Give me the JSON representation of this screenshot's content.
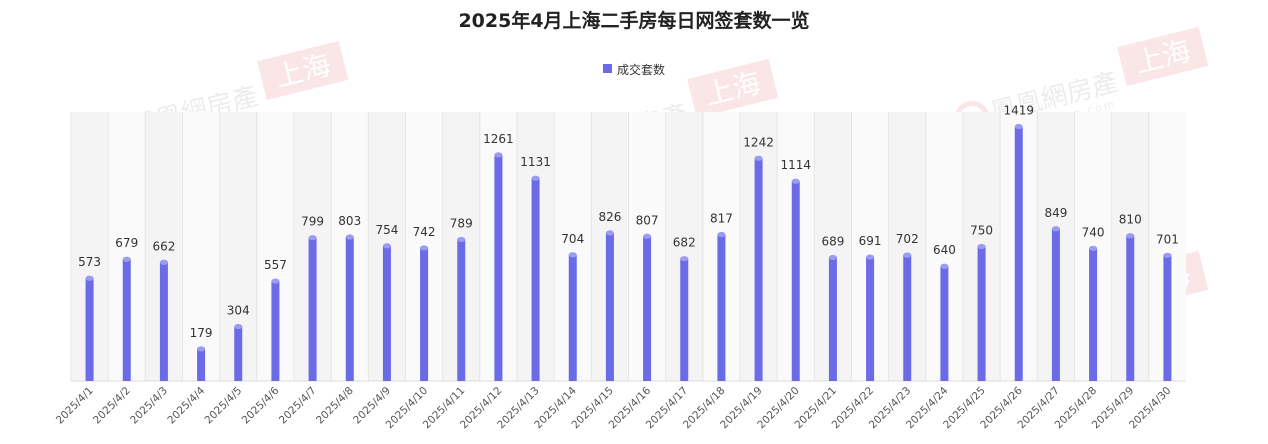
{
  "chart_data": {
    "type": "bar",
    "title": "2025年4月上海二手房每日网签套数一览",
    "categories": [
      "2025/4/1",
      "2025/4/2",
      "2025/4/3",
      "2025/4/4",
      "2025/4/5",
      "2025/4/6",
      "2025/4/7",
      "2025/4/8",
      "2025/4/9",
      "2025/4/10",
      "2025/4/11",
      "2025/4/12",
      "2025/4/13",
      "2025/4/14",
      "2025/4/15",
      "2025/4/16",
      "2025/4/17",
      "2025/4/18",
      "2025/4/19",
      "2025/4/20",
      "2025/4/21",
      "2025/4/22",
      "2025/4/23",
      "2025/4/24",
      "2025/4/25",
      "2025/4/26",
      "2025/4/27",
      "2025/4/28",
      "2025/4/29",
      "2025/4/30"
    ],
    "series": [
      {
        "name": "成交套数",
        "color": "#6b6be8",
        "values": [
          573,
          679,
          662,
          179,
          304,
          557,
          799,
          803,
          754,
          742,
          789,
          1261,
          1131,
          704,
          826,
          807,
          682,
          817,
          1242,
          1114,
          689,
          691,
          702,
          640,
          750,
          1419,
          849,
          740,
          810,
          701
        ]
      }
    ],
    "xlabel": "",
    "ylabel": "",
    "ylim": [
      0,
      1500
    ],
    "grid": "vertical-bands",
    "legend_position": "top-center",
    "data_labels": true
  },
  "watermark": {
    "brand": "鳳凰網房產",
    "site": "house.ifeng.com",
    "city": "上海",
    "accent": "#e0454a"
  }
}
